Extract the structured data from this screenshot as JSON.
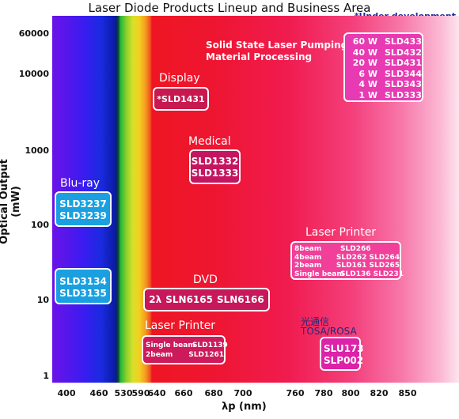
{
  "title": "Laser Diode Products Lineup and Business Area",
  "note": "*Under development",
  "chart_data": {
    "type": "table",
    "title": "Laser Diode Products Lineup and Business Area",
    "xlabel": "λp   (nm)",
    "ylabel": "Optical Output (mW)",
    "x_ticks": [
      "400",
      "460",
      "530",
      "590",
      "640",
      "660",
      "680",
      "700",
      "760",
      "780",
      "800",
      "820",
      "850"
    ],
    "y_ticks": [
      "60000",
      "10000",
      "1000",
      "100",
      "10",
      "1"
    ],
    "y_scale": "log",
    "groups": [
      {
        "area": "Solid State Laser Pumping",
        "area2": "Material Processing",
        "items": [
          {
            "power": "60 W",
            "model": "SLD433"
          },
          {
            "power": "40 W",
            "model": "SLD432"
          },
          {
            "power": "20 W",
            "model": "SLD431"
          },
          {
            "power": "6 W",
            "model": "SLD344"
          },
          {
            "power": "4 W",
            "model": "SLD343"
          },
          {
            "power": "1 W",
            "model": "SLD333"
          }
        ]
      },
      {
        "area": "Display",
        "models": [
          "*SLD1431"
        ]
      },
      {
        "area": "Medical",
        "models": [
          "SLD1332",
          "SLD1333"
        ]
      },
      {
        "area": "Blu-ray",
        "models": [
          "SLD3237",
          "SLD3239"
        ]
      },
      {
        "area": "",
        "models": [
          "SLD3134",
          "SLD3135"
        ]
      },
      {
        "area": "DVD",
        "prefix": "2λ",
        "models": [
          "SLN6165",
          "SLN6166"
        ]
      },
      {
        "area": "Laser Printer",
        "items": [
          {
            "type": "8beam",
            "models": "SLD266"
          },
          {
            "type": "4beam",
            "models": "SLD262 SLD264"
          },
          {
            "type": "2beam",
            "models": "SLD161 SLD265"
          },
          {
            "type": "Single beam",
            "models": "SLD136 SLD231"
          }
        ]
      },
      {
        "area": "Laser Printer",
        "items": [
          {
            "type": "Single beam",
            "models": "SLD1139"
          },
          {
            "type": "2beam",
            "models": "SLD1261"
          }
        ]
      },
      {
        "area": "光通信",
        "area2": "TOSA/ROSA",
        "models": [
          "SLU173",
          "SLP002"
        ]
      }
    ]
  },
  "colors": {
    "box_dark": "#c4155a",
    "box_blue": "#1a9ee0",
    "box_pink": "#ee3aa8",
    "box_magenta": "#d81fa4"
  }
}
